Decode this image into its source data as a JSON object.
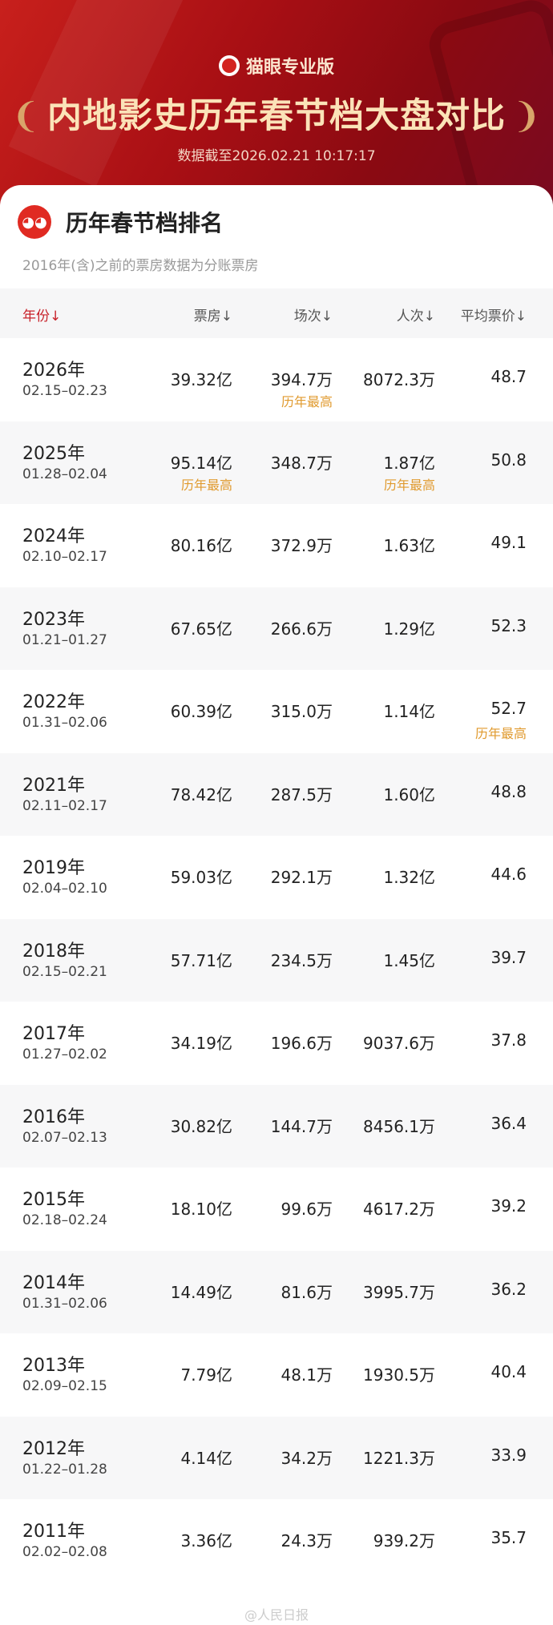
{
  "header": {
    "brand": "猫眼专业版",
    "title": "内地影史历年春节档大盘对比",
    "as_of": "数据截至2026.02.21 10:17:17"
  },
  "card": {
    "title": "历年春节档排名",
    "note": "2016年(含)之前的票房数据为分账票房"
  },
  "columns": [
    "年份↓",
    "票房↓",
    "场次↓",
    "人次↓",
    "平均票价↓"
  ],
  "highlight_label": "历年最高",
  "colors": {
    "accent": "#c8222a",
    "highlight": "#e09a2e",
    "hero": "#a80f14"
  },
  "rows": [
    {
      "year": "2026年",
      "dates": "02.15–02.23",
      "box": "39.32亿",
      "shows": "394.7万",
      "admissions": "8072.3万",
      "price": "48.7",
      "best": [
        "shows"
      ]
    },
    {
      "year": "2025年",
      "dates": "01.28–02.04",
      "box": "95.14亿",
      "shows": "348.7万",
      "admissions": "1.87亿",
      "price": "50.8",
      "best": [
        "box",
        "admissions"
      ]
    },
    {
      "year": "2024年",
      "dates": "02.10–02.17",
      "box": "80.16亿",
      "shows": "372.9万",
      "admissions": "1.63亿",
      "price": "49.1",
      "best": []
    },
    {
      "year": "2023年",
      "dates": "01.21–01.27",
      "box": "67.65亿",
      "shows": "266.6万",
      "admissions": "1.29亿",
      "price": "52.3",
      "best": []
    },
    {
      "year": "2022年",
      "dates": "01.31–02.06",
      "box": "60.39亿",
      "shows": "315.0万",
      "admissions": "1.14亿",
      "price": "52.7",
      "best": [
        "price"
      ]
    },
    {
      "year": "2021年",
      "dates": "02.11–02.17",
      "box": "78.42亿",
      "shows": "287.5万",
      "admissions": "1.60亿",
      "price": "48.8",
      "best": []
    },
    {
      "year": "2019年",
      "dates": "02.04–02.10",
      "box": "59.03亿",
      "shows": "292.1万",
      "admissions": "1.32亿",
      "price": "44.6",
      "best": []
    },
    {
      "year": "2018年",
      "dates": "02.15–02.21",
      "box": "57.71亿",
      "shows": "234.5万",
      "admissions": "1.45亿",
      "price": "39.7",
      "best": []
    },
    {
      "year": "2017年",
      "dates": "01.27–02.02",
      "box": "34.19亿",
      "shows": "196.6万",
      "admissions": "9037.6万",
      "price": "37.8",
      "best": []
    },
    {
      "year": "2016年",
      "dates": "02.07–02.13",
      "box": "30.82亿",
      "shows": "144.7万",
      "admissions": "8456.1万",
      "price": "36.4",
      "best": []
    },
    {
      "year": "2015年",
      "dates": "02.18–02.24",
      "box": "18.10亿",
      "shows": "99.6万",
      "admissions": "4617.2万",
      "price": "39.2",
      "best": []
    },
    {
      "year": "2014年",
      "dates": "01.31–02.06",
      "box": "14.49亿",
      "shows": "81.6万",
      "admissions": "3995.7万",
      "price": "36.2",
      "best": []
    },
    {
      "year": "2013年",
      "dates": "02.09–02.15",
      "box": "7.79亿",
      "shows": "48.1万",
      "admissions": "1930.5万",
      "price": "40.4",
      "best": []
    },
    {
      "year": "2012年",
      "dates": "01.22–01.28",
      "box": "4.14亿",
      "shows": "34.2万",
      "admissions": "1221.3万",
      "price": "33.9",
      "best": []
    },
    {
      "year": "2011年",
      "dates": "02.02–02.08",
      "box": "3.36亿",
      "shows": "24.3万",
      "admissions": "939.2万",
      "price": "35.7",
      "best": []
    }
  ],
  "watermark": "@人民日报"
}
